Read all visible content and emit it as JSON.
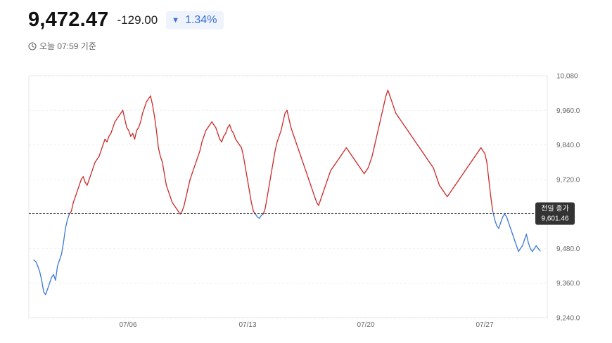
{
  "header": {
    "price": "9,472.47",
    "change": "-129.00",
    "change_pct": "1.34%",
    "timestamp": "오늘 07:59 기준"
  },
  "colors": {
    "up": "#cc2b2b",
    "down": "#3b78d8",
    "badge_bg": "#eef3fc",
    "badge_text": "#3b6fd8"
  },
  "chart_data": {
    "type": "line",
    "x_ticks": [
      "07/06",
      "07/13",
      "07/20",
      "07/27"
    ],
    "y_ticks": [
      "10,080",
      "9,960.0",
      "9,840.0",
      "9,720.0",
      "9,480.0",
      "9,360.0",
      "9,240.0"
    ],
    "ylim": [
      9240,
      10080
    ],
    "reference": {
      "label": "전일 종가",
      "value": 9601.46,
      "value_label": "9,601.46"
    },
    "grid": true,
    "series": [
      {
        "values": [
          9440,
          9435,
          9420,
          9400,
          9370,
          9330,
          9320,
          9340,
          9360,
          9380,
          9390,
          9370,
          9420,
          9440,
          9460,
          9500,
          9550,
          9580,
          9600,
          9610,
          9640,
          9660,
          9680,
          9700,
          9720,
          9730,
          9710,
          9700,
          9720,
          9740,
          9760,
          9780,
          9790,
          9800,
          9820,
          9840,
          9860,
          9850,
          9870,
          9880,
          9900,
          9920,
          9930,
          9940,
          9950,
          9960,
          9930,
          9900,
          9890,
          9870,
          9880,
          9860,
          9890,
          9900,
          9920,
          9950,
          9970,
          9990,
          10000,
          10010,
          9980,
          9940,
          9890,
          9830,
          9800,
          9780,
          9740,
          9700,
          9680,
          9660,
          9640,
          9630,
          9620,
          9610,
          9600,
          9610,
          9630,
          9660,
          9690,
          9720,
          9740,
          9760,
          9780,
          9800,
          9820,
          9850,
          9870,
          9890,
          9900,
          9910,
          9920,
          9910,
          9900,
          9880,
          9860,
          9850,
          9870,
          9880,
          9900,
          9910,
          9890,
          9880,
          9860,
          9850,
          9840,
          9830,
          9800,
          9760,
          9720,
          9680,
          9640,
          9610,
          9600,
          9590,
          9585,
          9595,
          9600,
          9620,
          9660,
          9700,
          9740,
          9780,
          9820,
          9850,
          9870,
          9890,
          9920,
          9950,
          9960,
          9930,
          9900,
          9880,
          9860,
          9840,
          9820,
          9800,
          9780,
          9760,
          9740,
          9720,
          9700,
          9680,
          9660,
          9640,
          9630,
          9650,
          9670,
          9690,
          9710,
          9730,
          9750,
          9760,
          9770,
          9780,
          9790,
          9800,
          9810,
          9820,
          9830,
          9820,
          9810,
          9800,
          9790,
          9780,
          9770,
          9760,
          9750,
          9740,
          9750,
          9760,
          9780,
          9800,
          9830,
          9860,
          9890,
          9920,
          9950,
          9980,
          10010,
          10030,
          10010,
          9990,
          9970,
          9950,
          9940,
          9930,
          9920,
          9910,
          9900,
          9890,
          9880,
          9870,
          9860,
          9850,
          9840,
          9830,
          9820,
          9810,
          9800,
          9790,
          9780,
          9770,
          9760,
          9740,
          9720,
          9700,
          9690,
          9680,
          9670,
          9660,
          9670,
          9680,
          9690,
          9700,
          9710,
          9720,
          9730,
          9740,
          9750,
          9760,
          9770,
          9780,
          9790,
          9800,
          9810,
          9820,
          9830,
          9820,
          9810,
          9780,
          9720,
          9660,
          9610,
          9580,
          9560,
          9550,
          9570,
          9590,
          9600,
          9590,
          9570,
          9550,
          9530,
          9510,
          9490,
          9470,
          9480,
          9490,
          9510,
          9530,
          9500,
          9480,
          9470,
          9480,
          9490,
          9480,
          9472
        ]
      }
    ]
  }
}
